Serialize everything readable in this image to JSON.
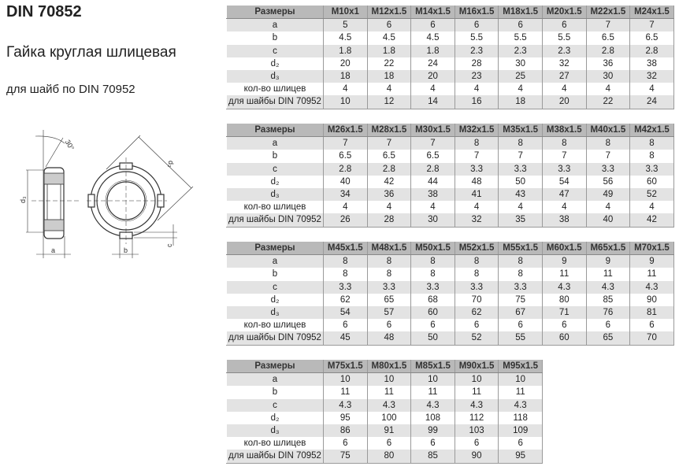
{
  "title": "DIN 70852",
  "subtitle": "Гайка круглая шлицевая",
  "note": "для шайб по DIN 70952",
  "drawing": {
    "labels": {
      "angle": "30°",
      "d2": "d₂",
      "d3": "d₃",
      "a": "a",
      "b": "b",
      "c": "c"
    }
  },
  "row_labels": [
    "a",
    "b",
    "c",
    "d₂",
    "d₃",
    "кол-во шлицев",
    "для шайбы DIN 70952"
  ],
  "header_label": "Размеры",
  "colors": {
    "header": "#b9b9b9",
    "shade": "#e3e3e3"
  },
  "tables": [
    {
      "sizes": [
        "M10x1",
        "M12x1.5",
        "M14x1.5",
        "M16x1.5",
        "M18x1.5",
        "M20x1.5",
        "M22x1.5",
        "M24x1.5"
      ],
      "rows": [
        [
          "5",
          "6",
          "6",
          "6",
          "6",
          "6",
          "7",
          "7"
        ],
        [
          "4.5",
          "4.5",
          "4.5",
          "5.5",
          "5.5",
          "5.5",
          "6.5",
          "6.5"
        ],
        [
          "1.8",
          "1.8",
          "1.8",
          "2.3",
          "2.3",
          "2.3",
          "2.8",
          "2.8"
        ],
        [
          "20",
          "22",
          "24",
          "28",
          "30",
          "32",
          "36",
          "38"
        ],
        [
          "18",
          "18",
          "20",
          "23",
          "25",
          "27",
          "30",
          "32"
        ],
        [
          "4",
          "4",
          "4",
          "4",
          "4",
          "4",
          "4",
          "4"
        ],
        [
          "10",
          "12",
          "14",
          "16",
          "18",
          "20",
          "22",
          "24"
        ]
      ]
    },
    {
      "sizes": [
        "M26x1.5",
        "M28x1.5",
        "M30x1.5",
        "M32x1.5",
        "M35x1.5",
        "M38x1.5",
        "M40x1.5",
        "M42x1.5"
      ],
      "rows": [
        [
          "7",
          "7",
          "7",
          "8",
          "8",
          "8",
          "8",
          "8"
        ],
        [
          "6.5",
          "6.5",
          "6.5",
          "7",
          "7",
          "7",
          "7",
          "8"
        ],
        [
          "2.8",
          "2.8",
          "2.8",
          "3.3",
          "3.3",
          "3.3",
          "3.3",
          "3.3"
        ],
        [
          "40",
          "42",
          "44",
          "48",
          "50",
          "54",
          "56",
          "60"
        ],
        [
          "34",
          "36",
          "38",
          "41",
          "43",
          "47",
          "49",
          "52"
        ],
        [
          "4",
          "4",
          "4",
          "4",
          "4",
          "4",
          "4",
          "4"
        ],
        [
          "26",
          "28",
          "30",
          "32",
          "35",
          "38",
          "40",
          "42"
        ]
      ]
    },
    {
      "sizes": [
        "M45x1.5",
        "M48x1.5",
        "M50x1.5",
        "M52x1.5",
        "M55x1.5",
        "M60x1.5",
        "M65x1.5",
        "M70x1.5"
      ],
      "rows": [
        [
          "8",
          "8",
          "8",
          "8",
          "8",
          "9",
          "9",
          "9"
        ],
        [
          "8",
          "8",
          "8",
          "8",
          "8",
          "11",
          "11",
          "11"
        ],
        [
          "3.3",
          "3.3",
          "3.3",
          "3.3",
          "3.3",
          "4.3",
          "4.3",
          "4.3"
        ],
        [
          "62",
          "65",
          "68",
          "70",
          "75",
          "80",
          "85",
          "90"
        ],
        [
          "54",
          "57",
          "60",
          "62",
          "67",
          "71",
          "76",
          "81"
        ],
        [
          "6",
          "6",
          "6",
          "6",
          "6",
          "6",
          "6",
          "6"
        ],
        [
          "45",
          "48",
          "50",
          "52",
          "55",
          "60",
          "65",
          "70"
        ]
      ]
    },
    {
      "sizes": [
        "M75x1.5",
        "M80x1.5",
        "M85x1.5",
        "M90x1.5",
        "M95x1.5"
      ],
      "rows": [
        [
          "10",
          "10",
          "10",
          "10",
          "10"
        ],
        [
          "11",
          "11",
          "11",
          "11",
          "11"
        ],
        [
          "4.3",
          "4.3",
          "4.3",
          "4.3",
          "4.3"
        ],
        [
          "95",
          "100",
          "108",
          "112",
          "118"
        ],
        [
          "86",
          "91",
          "99",
          "103",
          "109"
        ],
        [
          "6",
          "6",
          "6",
          "6",
          "6"
        ],
        [
          "75",
          "80",
          "85",
          "90",
          "95"
        ]
      ]
    }
  ]
}
